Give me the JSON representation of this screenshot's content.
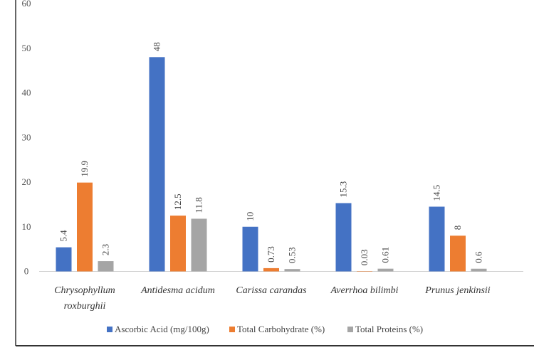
{
  "chart_data": {
    "type": "bar",
    "categories": [
      [
        "Chrysophyllum",
        "roxburghii"
      ],
      [
        "Antidesma acidum"
      ],
      [
        "Carissa carandas"
      ],
      [
        "Averrhoa bilimbi"
      ],
      [
        "Prunus jenkinsii"
      ]
    ],
    "series": [
      {
        "name": "Ascorbic Acid (mg/100g)",
        "color": "#4472C4",
        "values": [
          5.4,
          48,
          10,
          15.3,
          14.5
        ],
        "labels": [
          "5.4",
          "48",
          "10",
          "15.3",
          "14.5"
        ]
      },
      {
        "name": "Total Carbohydrate (%)",
        "color": "#ED7D31",
        "values": [
          19.9,
          12.5,
          0.73,
          0.03,
          8
        ],
        "labels": [
          "19.9",
          "12.5",
          "0.73",
          "0.03",
          "8"
        ]
      },
      {
        "name": "Total Proteins (%)",
        "color": "#A5A5A5",
        "values": [
          2.3,
          11.8,
          0.53,
          0.61,
          0.6
        ],
        "labels": [
          "2.3",
          "11.8",
          "0.53",
          "0.61",
          "0.6"
        ]
      }
    ],
    "yticks": [
      "0",
      "10",
      "20",
      "30",
      "40",
      "50",
      "60"
    ],
    "ylim": [
      0,
      60
    ],
    "grid": false,
    "legend": "bottom",
    "title": "",
    "xlabel": "",
    "ylabel": ""
  }
}
